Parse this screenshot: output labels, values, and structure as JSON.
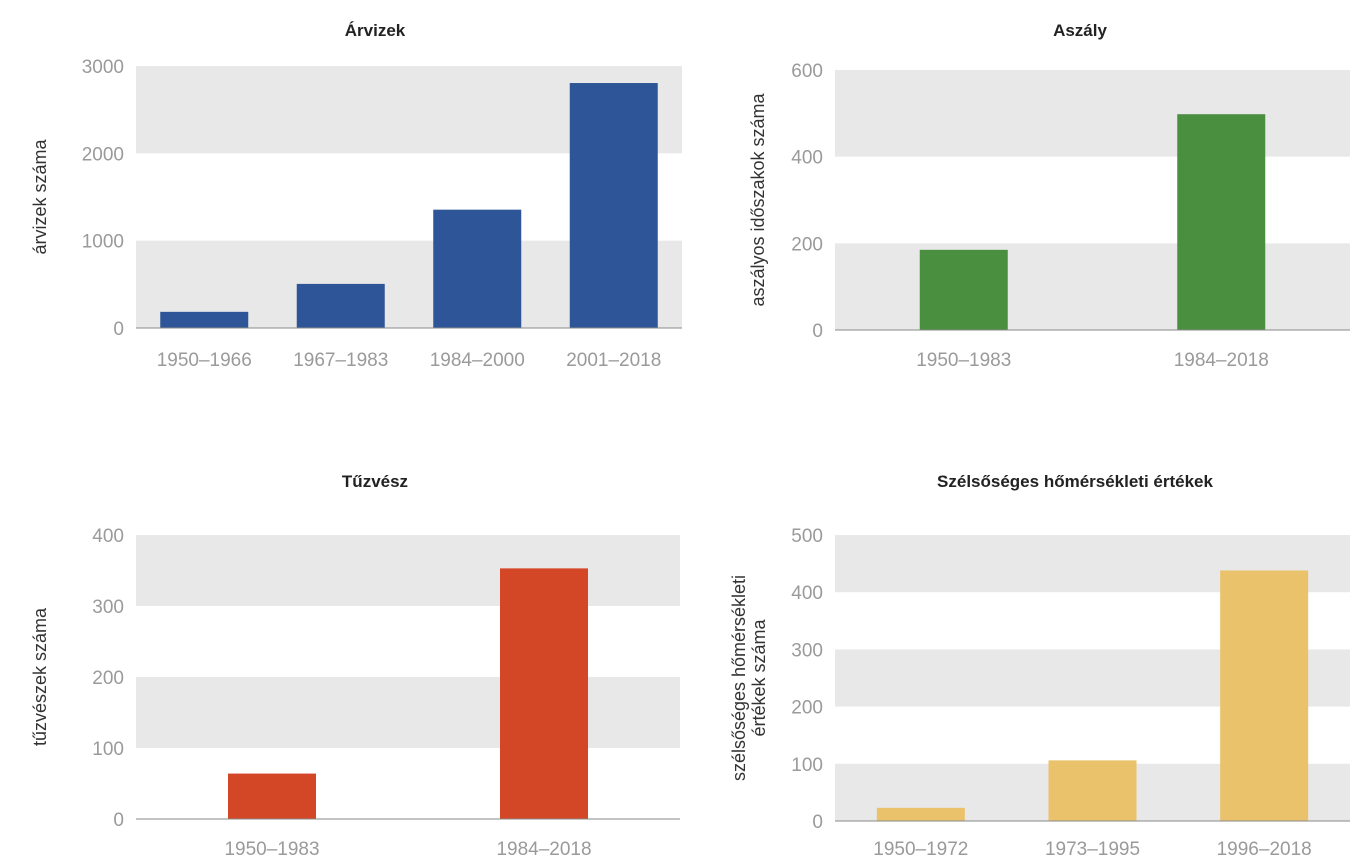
{
  "chart_data": [
    {
      "type": "bar",
      "title": "Árvizek",
      "ylabel": [
        "árvizek száma"
      ],
      "categories": [
        "1950–1966",
        "1967–1983",
        "1984–2000",
        "2001–2018"
      ],
      "values": [
        185,
        505,
        1355,
        2805
      ],
      "ylim": [
        0,
        3000
      ],
      "yticks": [
        0,
        1000,
        2000,
        3000
      ],
      "color": "#2e5597",
      "grid": "alternating bands"
    },
    {
      "type": "bar",
      "title": "Aszály",
      "ylabel": [
        "aszályos időszakok száma"
      ],
      "categories": [
        "1950–1983",
        "1984–2018"
      ],
      "values": [
        185,
        498
      ],
      "ylim": [
        0,
        600
      ],
      "yticks": [
        0,
        200,
        400,
        600
      ],
      "color": "#4a8f3f",
      "grid": "alternating bands"
    },
    {
      "type": "bar",
      "title": "Tűzvész",
      "ylabel": [
        "tűzvészek száma"
      ],
      "categories": [
        "1950–1983",
        "1984–2018"
      ],
      "values": [
        64,
        353
      ],
      "ylim": [
        0,
        400
      ],
      "yticks": [
        0,
        100,
        200,
        300,
        400
      ],
      "color": "#d34727",
      "grid": "alternating bands"
    },
    {
      "type": "bar",
      "title": "Szélsőséges hőmérsékleti értékek",
      "ylabel": [
        "szélsőséges hőmérsékleti",
        "értékek száma"
      ],
      "categories": [
        "1950–1972",
        "1973–1995",
        "1996–2018"
      ],
      "values": [
        23,
        106,
        438
      ],
      "ylim": [
        0,
        500
      ],
      "yticks": [
        0,
        100,
        200,
        300,
        400,
        500
      ],
      "color": "#ebc26c",
      "grid": "alternating bands"
    }
  ]
}
